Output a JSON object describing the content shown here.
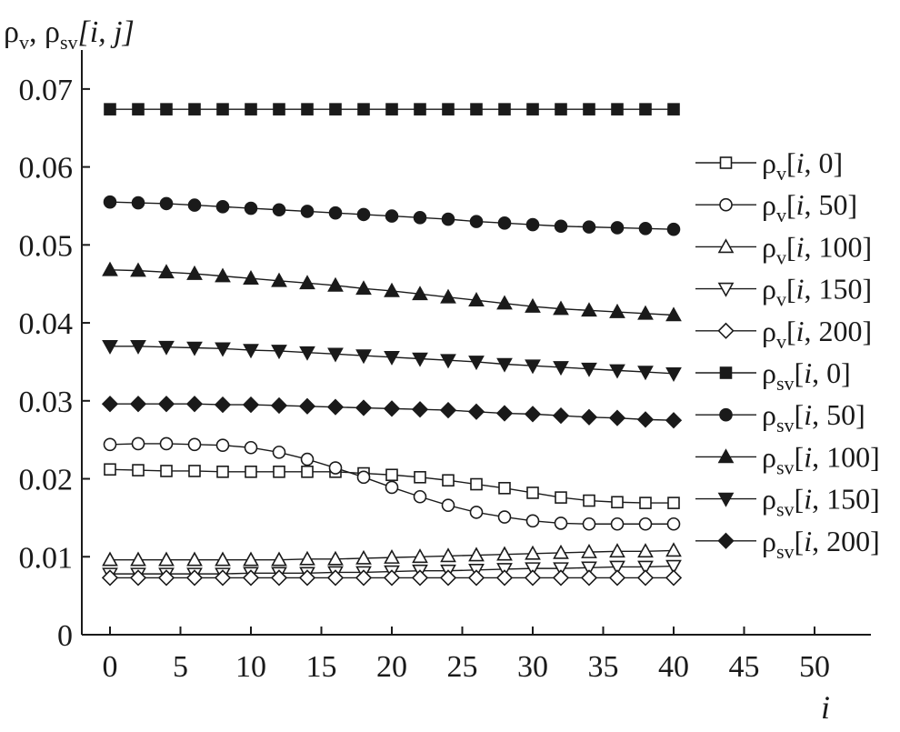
{
  "chart_data": {
    "type": "line",
    "title": "",
    "xlabel": "i",
    "ylabel": {
      "base": "ρ",
      "sub1": "v",
      "sep": ", ",
      "sub2": "sv",
      "args": "[i, j]"
    },
    "xlim": [
      -2,
      54
    ],
    "ylim": [
      0,
      0.075
    ],
    "xticks": [
      0,
      5,
      10,
      15,
      20,
      25,
      30,
      35,
      40,
      45,
      50
    ],
    "xtick_labels": [
      "0",
      "5",
      "10",
      "15",
      "20",
      "25",
      "30",
      "35",
      "40",
      "45",
      "50"
    ],
    "yticks": [
      0,
      0.01,
      0.02,
      0.03,
      0.04,
      0.05,
      0.06,
      0.07
    ],
    "ytick_labels": [
      "0",
      "0.01",
      "0.02",
      "0.03",
      "0.04",
      "0.05",
      "0.06",
      "0.07"
    ],
    "grid": false,
    "legend_position": "right",
    "x": [
      0,
      2,
      4,
      6,
      8,
      10,
      12,
      14,
      16,
      18,
      20,
      22,
      24,
      26,
      28,
      30,
      32,
      34,
      36,
      38,
      40
    ],
    "series": [
      {
        "name": "ρv[i, 0]",
        "sym": "v",
        "arg": "0",
        "marker": "square-open",
        "values": [
          0.0212,
          0.0211,
          0.021,
          0.021,
          0.0209,
          0.0209,
          0.0209,
          0.0209,
          0.0209,
          0.0207,
          0.0205,
          0.0202,
          0.0198,
          0.0193,
          0.0188,
          0.0182,
          0.0176,
          0.0172,
          0.017,
          0.0169,
          0.0169
        ]
      },
      {
        "name": "ρv[i, 50]",
        "sym": "v",
        "arg": "50",
        "marker": "circle-open",
        "values": [
          0.0244,
          0.0245,
          0.0245,
          0.0244,
          0.0243,
          0.024,
          0.0234,
          0.0225,
          0.0214,
          0.0202,
          0.0189,
          0.0177,
          0.0166,
          0.0157,
          0.0151,
          0.0146,
          0.0143,
          0.0142,
          0.0142,
          0.0142,
          0.0142
        ]
      },
      {
        "name": "ρv[i, 100]",
        "sym": "v",
        "arg": "100",
        "marker": "triangle-up-open",
        "values": [
          0.0096,
          0.0096,
          0.0096,
          0.0096,
          0.0096,
          0.0096,
          0.0096,
          0.0097,
          0.0097,
          0.0098,
          0.0099,
          0.01,
          0.0101,
          0.0102,
          0.0103,
          0.0104,
          0.0105,
          0.0106,
          0.0107,
          0.0107,
          0.0108
        ]
      },
      {
        "name": "ρv[i, 150]",
        "sym": "v",
        "arg": "150",
        "marker": "triangle-down-open",
        "values": [
          0.0078,
          0.0078,
          0.0078,
          0.0078,
          0.0078,
          0.0079,
          0.0079,
          0.0079,
          0.008,
          0.008,
          0.0081,
          0.0082,
          0.0082,
          0.0083,
          0.0084,
          0.0085,
          0.0085,
          0.0086,
          0.0087,
          0.0087,
          0.0088
        ]
      },
      {
        "name": "ρv[i, 200]",
        "sym": "v",
        "arg": "200",
        "marker": "diamond-open",
        "values": [
          0.0073,
          0.0073,
          0.0073,
          0.0073,
          0.0073,
          0.0073,
          0.0073,
          0.0073,
          0.0073,
          0.0073,
          0.0073,
          0.0073,
          0.0073,
          0.0073,
          0.0073,
          0.0073,
          0.0073,
          0.0073,
          0.0073,
          0.0073,
          0.0073
        ]
      },
      {
        "name": "ρsv[i, 0]",
        "sym": "sv",
        "arg": "0",
        "marker": "square-filled",
        "values": [
          0.0674,
          0.0674,
          0.0674,
          0.0674,
          0.0674,
          0.0674,
          0.0674,
          0.0674,
          0.0674,
          0.0674,
          0.0674,
          0.0674,
          0.0674,
          0.0674,
          0.0674,
          0.0674,
          0.0674,
          0.0674,
          0.0674,
          0.0674,
          0.0674
        ]
      },
      {
        "name": "ρsv[i, 50]",
        "sym": "sv",
        "arg": "50",
        "marker": "circle-filled",
        "values": [
          0.0555,
          0.0554,
          0.0553,
          0.0551,
          0.0549,
          0.0547,
          0.0545,
          0.0543,
          0.0541,
          0.0539,
          0.0537,
          0.0535,
          0.0533,
          0.053,
          0.0528,
          0.0526,
          0.0524,
          0.0523,
          0.0522,
          0.0521,
          0.052
        ]
      },
      {
        "name": "ρsv[i, 100]",
        "sym": "sv",
        "arg": "100",
        "marker": "triangle-up-filled",
        "values": [
          0.0468,
          0.0467,
          0.0465,
          0.0463,
          0.046,
          0.0457,
          0.0454,
          0.0451,
          0.0448,
          0.0444,
          0.0441,
          0.0437,
          0.0433,
          0.0429,
          0.0425,
          0.0421,
          0.0418,
          0.0416,
          0.0414,
          0.0412,
          0.041
        ]
      },
      {
        "name": "ρsv[i, 150]",
        "sym": "sv",
        "arg": "150",
        "marker": "triangle-down-filled",
        "values": [
          0.037,
          0.037,
          0.0369,
          0.0368,
          0.0367,
          0.0365,
          0.0364,
          0.0362,
          0.036,
          0.0358,
          0.0356,
          0.0354,
          0.0352,
          0.035,
          0.0347,
          0.0345,
          0.0343,
          0.0341,
          0.0339,
          0.0337,
          0.0335
        ]
      },
      {
        "name": "ρsv[i, 200]",
        "sym": "sv",
        "arg": "200",
        "marker": "diamond-filled",
        "values": [
          0.0296,
          0.0296,
          0.0296,
          0.0296,
          0.0295,
          0.0295,
          0.0294,
          0.0293,
          0.0292,
          0.0291,
          0.029,
          0.0289,
          0.0288,
          0.0286,
          0.0284,
          0.0283,
          0.0281,
          0.0279,
          0.0278,
          0.0276,
          0.0275
        ]
      }
    ]
  }
}
